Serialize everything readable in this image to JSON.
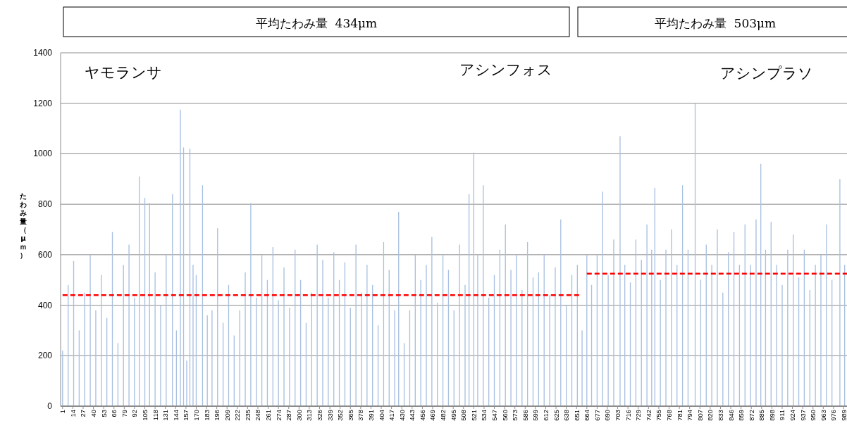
{
  "chart_data": {
    "type": "bar",
    "ylabel": "たわみ量（μｍ）",
    "annotations": [
      "平均たわみ量  434μm",
      "平均たわみ量  503μm",
      "ヤモランサ",
      "アシンフォス",
      "アシンプラソ"
    ],
    "xlim": [
      -1.5,
      993
    ],
    "xticks": [
      1,
      14,
      27,
      40,
      53,
      66,
      79,
      92,
      105,
      118,
      131,
      144,
      157,
      170,
      183,
      196,
      209,
      222,
      235,
      248,
      261,
      274,
      287,
      300,
      313,
      326,
      339,
      352,
      365,
      378,
      391,
      404,
      417,
      430,
      443,
      456,
      469,
      482,
      495,
      508,
      521,
      534,
      547,
      560,
      573,
      586,
      599,
      612,
      625,
      638,
      651,
      664,
      677,
      690,
      703,
      716,
      729,
      742,
      755,
      768,
      781,
      794,
      807,
      820,
      833,
      846,
      859,
      872,
      885,
      898,
      911,
      924,
      937,
      950,
      963,
      976,
      989
    ],
    "ylim": [
      0,
      1400
    ],
    "yticks": [
      0,
      200,
      400,
      600,
      800,
      1000,
      1200,
      1400
    ],
    "grid": "y",
    "series": [
      {
        "color": "#a9c0e0",
        "x": [
          1,
          8,
          15,
          22,
          29,
          36,
          43,
          50,
          57,
          64,
          71,
          78,
          85,
          92,
          98,
          105,
          111,
          118,
          125,
          132,
          140,
          145,
          150,
          154,
          158,
          162,
          166,
          170,
          178,
          184,
          190,
          197,
          204,
          211,
          218,
          225,
          232,
          239,
          246,
          253,
          260,
          267,
          274,
          281,
          288,
          295,
          302,
          309,
          316,
          323,
          330,
          337,
          344,
          351,
          358,
          365,
          372,
          379,
          386,
          393,
          400,
          407,
          414,
          421,
          426,
          433,
          440,
          447,
          454,
          461,
          468,
          475,
          482,
          489,
          496,
          503,
          510,
          515,
          521,
          526,
          533,
          540,
          547,
          554,
          561,
          568,
          575,
          582,
          589,
          596,
          603,
          610,
          617,
          624,
          631,
          638,
          645,
          652,
          658,
          664,
          670,
          677,
          684,
          691,
          698,
          706,
          712,
          719,
          726,
          733,
          740,
          746,
          750,
          757,
          764,
          771,
          778,
          785,
          792,
          801,
          808,
          815,
          822,
          829,
          836,
          843,
          850,
          857,
          864,
          871,
          878,
          884,
          890,
          897,
          904,
          911,
          918,
          925,
          932,
          939,
          946,
          953,
          960,
          967,
          974,
          984,
          990
        ],
        "values": [
          220,
          480,
          575,
          300,
          450,
          600,
          380,
          520,
          350,
          690,
          250,
          560,
          640,
          430,
          910,
          825,
          805,
          530,
          400,
          600,
          840,
          300,
          1175,
          1025,
          180,
          1020,
          560,
          520,
          875,
          360,
          380,
          705,
          330,
          480,
          280,
          380,
          530,
          805,
          430,
          600,
          500,
          630,
          420,
          550,
          390,
          620,
          500,
          330,
          450,
          640,
          580,
          430,
          610,
          500,
          570,
          390,
          640,
          450,
          560,
          480,
          320,
          650,
          540,
          380,
          770,
          250,
          380,
          600,
          500,
          560,
          670,
          410,
          600,
          540,
          380,
          640,
          480,
          840,
          1005,
          600,
          875,
          430,
          520,
          620,
          720,
          540,
          600,
          460,
          650,
          510,
          530,
          600,
          440,
          550,
          740,
          400,
          520,
          560,
          300,
          600,
          480,
          600,
          850,
          520,
          660,
          1070,
          560,
          490,
          660,
          580,
          720,
          620,
          865,
          500,
          620,
          700,
          560,
          875,
          620,
          1200,
          500,
          640,
          560,
          700,
          450,
          610,
          690,
          560,
          720,
          560,
          740,
          960,
          620,
          730,
          560,
          480,
          620,
          680,
          510,
          620,
          460,
          560,
          600,
          720,
          500,
          900,
          560
        ]
      },
      {
        "type": "line",
        "color": "#ff0000",
        "line_style": "dashed",
        "x": [
          1,
          655
        ],
        "values": [
          440,
          440
        ]
      },
      {
        "type": "line",
        "color": "#ff0000",
        "line_style": "dashed",
        "x": [
          664,
          993
        ],
        "values": [
          525,
          525
        ]
      }
    ]
  }
}
